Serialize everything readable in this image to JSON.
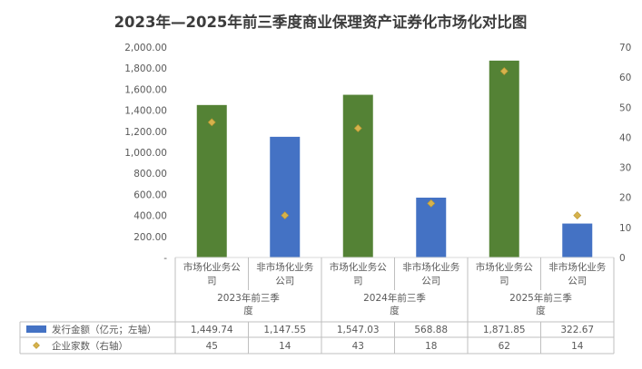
{
  "chart_data": {
    "type": "bar",
    "title": "2023年—2025年前三季度商业保理资产证券化市场化对比图",
    "groups": [
      {
        "label": "2023年前三季度",
        "label_lines": [
          "2023年前三季",
          "度"
        ]
      },
      {
        "label": "2024年前三季度",
        "label_lines": [
          "2024年前三季",
          "度"
        ]
      },
      {
        "label": "2025年前三季度",
        "label_lines": [
          "2025年前三季",
          "度"
        ]
      }
    ],
    "categories": [
      {
        "label": "市场化业务公司",
        "label_lines": [
          "市场化业务公",
          "司"
        ],
        "group": 0
      },
      {
        "label": "非市场化业务公司",
        "label_lines": [
          "非市场化业务",
          "公司"
        ],
        "group": 0
      },
      {
        "label": "市场化业务公司",
        "label_lines": [
          "市场化业务公",
          "司"
        ],
        "group": 1
      },
      {
        "label": "非市场化业务公司",
        "label_lines": [
          "非市场化业务",
          "公司"
        ],
        "group": 1
      },
      {
        "label": "市场化业务公司",
        "label_lines": [
          "市场化业务公",
          "司"
        ],
        "group": 2
      },
      {
        "label": "非市场化业务公司",
        "label_lines": [
          "非市场化业务",
          "公司"
        ],
        "group": 2
      }
    ],
    "series": [
      {
        "name": "发行金额（亿元；左轴）",
        "type": "bar",
        "axis": "left",
        "values": [
          1449.74,
          1147.55,
          1547.03,
          568.88,
          1871.85,
          322.67
        ],
        "display": [
          "1,449.74",
          "1,147.55",
          "1,547.03",
          "568.88",
          "1,871.85",
          "322.67"
        ],
        "colors": [
          "#548235",
          "#4472c4",
          "#548235",
          "#4472c4",
          "#548235",
          "#4472c4"
        ],
        "legend_color": "#4472c4"
      },
      {
        "name": "企业家数（右轴）",
        "type": "scatter",
        "axis": "right",
        "values": [
          45,
          14,
          43,
          18,
          62,
          14
        ],
        "display": [
          "45",
          "14",
          "43",
          "18",
          "62",
          "14"
        ],
        "color": "#d6b24c"
      }
    ],
    "y_left": {
      "min": 0,
      "max": 2000,
      "step": 200,
      "tick_labels": [
        "-",
        "200.00",
        "400.00",
        "600.00",
        "800.00",
        "1,000.00",
        "1,200.00",
        "1,400.00",
        "1,600.00",
        "1,800.00",
        "2,000.00"
      ]
    },
    "y_right": {
      "min": 0,
      "max": 70,
      "step": 10,
      "tick_labels": [
        "0",
        "10",
        "20",
        "30",
        "40",
        "50",
        "60",
        "70"
      ]
    },
    "grid": false,
    "legend": "data-table"
  }
}
